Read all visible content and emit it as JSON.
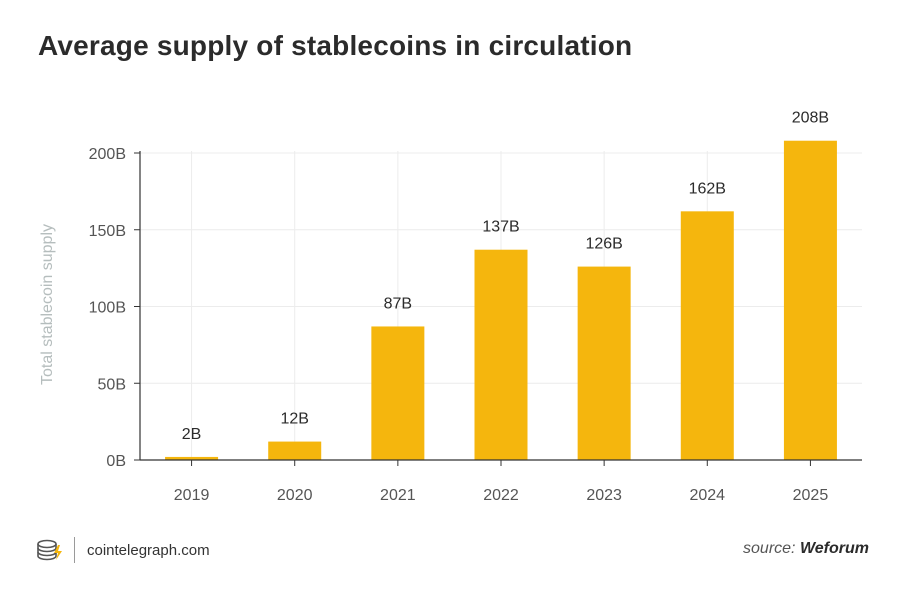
{
  "title": "Average supply of stablecoins in circulation",
  "chart_data": {
    "type": "bar",
    "title": "Average supply of stablecoins in circulation",
    "xlabel": "",
    "ylabel": "Total stablecoin supply",
    "categories": [
      "2019",
      "2020",
      "2021",
      "2022",
      "2023",
      "2024",
      "2025"
    ],
    "values": [
      2,
      12,
      87,
      137,
      126,
      162,
      208
    ],
    "data_labels": [
      "2B",
      "12B",
      "87B",
      "137B",
      "126B",
      "162B",
      "208B"
    ],
    "yticks": [
      0,
      50,
      100,
      150,
      200
    ],
    "ytick_labels": [
      "0B",
      "50B",
      "100B",
      "150B",
      "200B"
    ],
    "ylim": [
      0,
      200
    ],
    "grid": true,
    "colors": {
      "bar": "#F5B60D",
      "grid": "#ECECEC",
      "axis": "#333333",
      "tick_text": "#555555",
      "ylabel_text": "#B5BDBD",
      "label_text": "#2b2b2b"
    }
  },
  "footer": {
    "brand": "cointelegraph.com",
    "brand_icon": "coin-stack-lightning-icon",
    "source_prefix": "source:",
    "source_name": "Weforum"
  }
}
